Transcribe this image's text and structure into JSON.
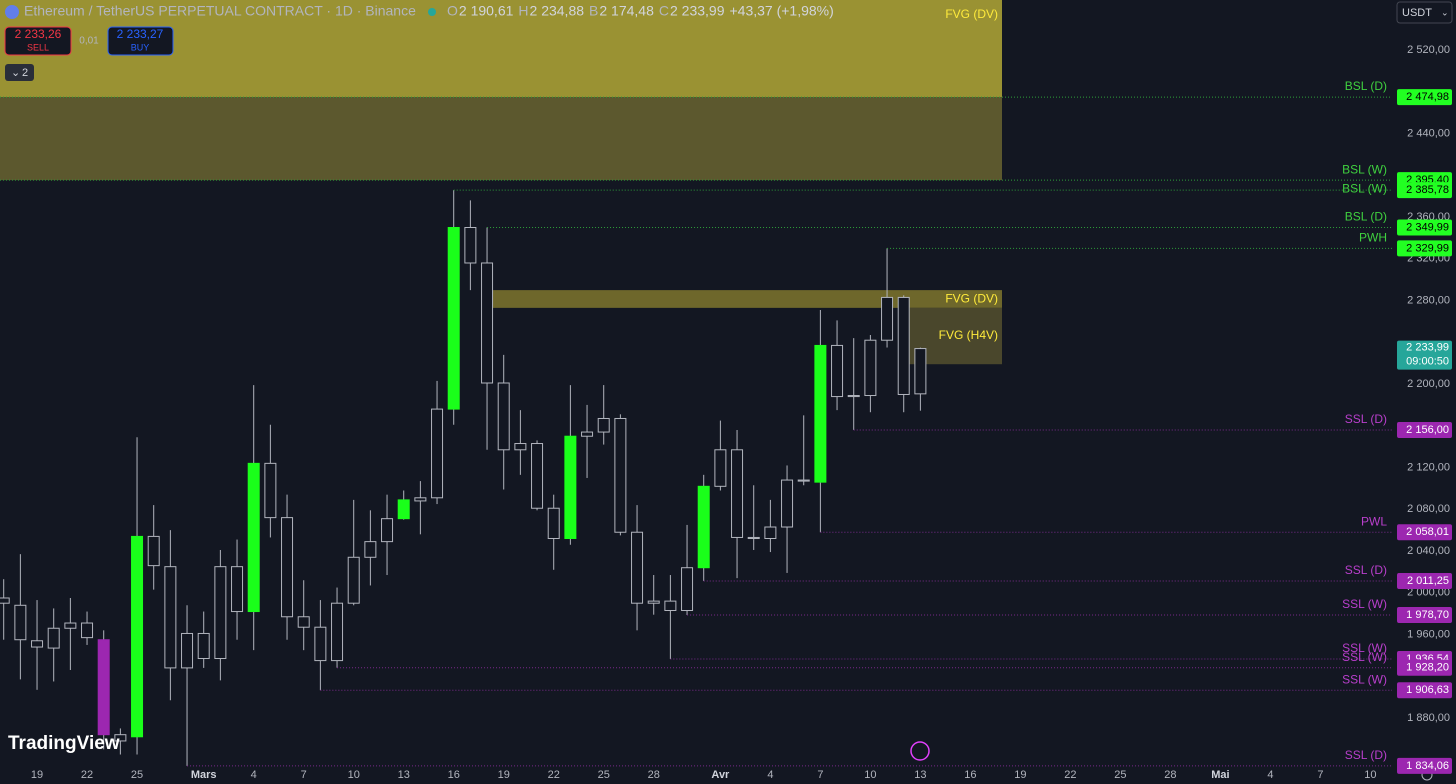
{
  "chart_data": {
    "type": "candlestick",
    "title": "Ethereum / TetherUS PERPETUAL CONTRACT · 1D · Binance",
    "header_fields": [
      {
        "key": "O",
        "value": "2 190,61"
      },
      {
        "key": "H",
        "value": "2 234,88"
      },
      {
        "key": "B",
        "value": "2 174,48"
      },
      {
        "key": "C",
        "value": "2 233,99"
      }
    ],
    "change": "+43,37 (+1,98%)",
    "sell": {
      "price": "2 233,26",
      "label": "SELL"
    },
    "spread": "0,01",
    "buy": {
      "price": "2 233,27",
      "label": "BUY"
    },
    "indicators": "2",
    "currency": "USDT",
    "brand": "TradingView",
    "last_price": {
      "value": 2233.99,
      "label": "2 233,99"
    },
    "countdown": "09:00:50",
    "categories": [
      null,
      null,
      "19",
      null,
      null,
      "22",
      null,
      null,
      "25",
      null,
      null,
      null,
      "Mars",
      null,
      null,
      "4",
      null,
      null,
      "7",
      null,
      null,
      "10",
      null,
      null,
      "13",
      null,
      null,
      "16",
      null,
      null,
      "19",
      null,
      null,
      "22",
      null,
      null,
      "25",
      null,
      null,
      "28",
      null,
      null,
      null,
      "Avr",
      null,
      null,
      "4",
      null,
      null,
      "7",
      null,
      null,
      "10",
      null,
      null,
      "13",
      null,
      null,
      "16",
      null,
      null,
      "19",
      null,
      null,
      "22",
      null,
      null,
      "25",
      null,
      null,
      "28",
      null,
      null,
      "Mai",
      null,
      null,
      "4",
      null,
      null,
      "7",
      null,
      null,
      "10"
    ],
    "open": [
      1995,
      1988,
      1954,
      1947,
      1966,
      1971,
      1955,
      1864,
      1862,
      2054,
      2025,
      1928,
      1961,
      1937,
      2025,
      1982,
      2124,
      2072,
      1977,
      1967,
      1935,
      1990,
      2034,
      2049,
      2071,
      2088,
      2091,
      2176,
      2350,
      2316,
      2201,
      2137,
      2143,
      2081,
      2052,
      2150,
      2154,
      2167,
      2058,
      1990,
      1992,
      1983,
      2024,
      2102,
      2137,
      2053,
      2052,
      2063,
      2108,
      2106,
      2237,
      2188,
      2189,
      2242,
      2283,
      2190.61,
      null,
      null,
      null,
      null,
      null,
      null,
      null,
      null,
      null,
      null,
      null,
      null,
      null,
      null,
      null,
      null,
      null,
      null,
      null,
      null,
      null,
      null,
      null,
      null,
      null,
      null,
      null
    ],
    "high": [
      2013,
      2037,
      1993,
      1985,
      1995,
      1982,
      1964,
      1870,
      2149,
      2084,
      2060,
      1988,
      1982,
      2041,
      2051,
      2199,
      2161,
      2094,
      2012,
      1993,
      2005,
      2089,
      2079,
      2094,
      2098,
      2107,
      2203,
      2385.78,
      2376,
      2349.99,
      2228,
      2175,
      2146,
      2094,
      2199,
      2180,
      2199,
      2171,
      2084,
      2017,
      2017,
      2065,
      2113,
      2165,
      2156,
      2103,
      2089,
      2122,
      2170,
      2271,
      2261,
      2244,
      2247,
      2329.99,
      2285,
      2234.88,
      null,
      null,
      null,
      null,
      null,
      null,
      null,
      null,
      null,
      null,
      null,
      null,
      null,
      null,
      null,
      null,
      null,
      null,
      null,
      null,
      null,
      null,
      null,
      null,
      null,
      null,
      null
    ],
    "low": [
      1955,
      1917,
      1907,
      1915,
      1926,
      1950,
      1850,
      1845,
      1845,
      2003,
      1897,
      1834.06,
      1928,
      1916,
      1955,
      1945,
      2053,
      1955,
      1945,
      1906.63,
      1928.2,
      1988,
      2007,
      2017,
      2070,
      2056,
      2085,
      2161,
      2290,
      2137,
      2099,
      2113,
      2079,
      2022,
      2046,
      2110,
      2142,
      2055,
      1964,
      1979,
      1936.54,
      1978.7,
      2011.25,
      2098,
      2014,
      2041,
      2039,
      2019,
      2103,
      2058.01,
      2175,
      2156,
      2173,
      2235,
      2173,
      2174.48,
      null,
      null,
      null,
      null,
      null,
      null,
      null,
      null,
      null,
      null,
      null,
      null,
      null,
      null,
      null,
      null,
      null,
      null,
      null,
      null,
      null,
      null,
      null,
      null,
      null,
      null,
      null
    ],
    "close": [
      1990,
      1955,
      1948,
      1966,
      1971,
      1957,
      1864,
      1858,
      2054,
      2026,
      1928,
      1961,
      1937,
      2025,
      1982,
      2124,
      2072,
      1977,
      1967,
      1935,
      1990,
      2034,
      2049,
      2071,
      2089,
      2091,
      2176,
      2350,
      2316,
      2201,
      2137,
      2143,
      2081,
      2052,
      2150,
      2154,
      2167,
      2058,
      1990,
      1992,
      1983,
      2024,
      2102,
      2137,
      2053,
      2052,
      2063,
      2108,
      2107,
      2237,
      2188,
      2189,
      2242,
      2283,
      2190,
      2233.99,
      null,
      null,
      null,
      null,
      null,
      null,
      null,
      null,
      null,
      null,
      null,
      null,
      null,
      null,
      null,
      null,
      null,
      null,
      null,
      null,
      null,
      null,
      null,
      null,
      null,
      null,
      null
    ],
    "colors": [
      "#131722",
      "#131722",
      "#131722",
      "#131722",
      "#131722",
      "#131722",
      "#9c27b0",
      "#131722",
      "#1aff1a",
      "#131722",
      "#131722",
      "#131722",
      "#131722",
      "#131722",
      "#131722",
      "#1aff1a",
      "#131722",
      "#131722",
      "#131722",
      "#131722",
      "#131722",
      "#131722",
      "#131722",
      "#131722",
      "#1aff1a",
      "#131722",
      "#131722",
      "#1aff1a",
      "#131722",
      "#131722",
      "#131722",
      "#131722",
      "#131722",
      "#131722",
      "#1aff1a",
      "#131722",
      "#131722",
      "#131722",
      "#131722",
      "#131722",
      "#131722",
      "#131722",
      "#1aff1a",
      "#131722",
      "#131722",
      "#131722",
      "#131722",
      "#131722",
      "#131722",
      "#1aff1a",
      "#131722",
      "#131722",
      "#131722",
      "#131722",
      "#131722",
      "#131722",
      null,
      null,
      null,
      null,
      null,
      null,
      null,
      null,
      null,
      null,
      null,
      null,
      null,
      null,
      null,
      null,
      null,
      null,
      null,
      null,
      null,
      null,
      null,
      null,
      null,
      null,
      null
    ],
    "ylim": [
      1834,
      2568
    ],
    "yticks": [
      {
        "value": 2520,
        "label": "2 520,00"
      },
      {
        "value": 2440,
        "label": "2 440,00"
      },
      {
        "value": 2360,
        "label": "2 360,00"
      },
      {
        "value": 2320,
        "label": "2 320,00"
      },
      {
        "value": 2280,
        "label": "2 280,00"
      },
      {
        "value": 2200,
        "label": "2 200,00"
      },
      {
        "value": 2120,
        "label": "2 120,00"
      },
      {
        "value": 2080,
        "label": "2 080,00"
      },
      {
        "value": 2040,
        "label": "2 040,00"
      },
      {
        "value": 2000,
        "label": "2 000,00"
      },
      {
        "value": 1960,
        "label": "1 960,00"
      },
      {
        "value": 1880,
        "label": "1 880,00"
      }
    ],
    "grid": false,
    "zones": [
      {
        "label": "FVG (DV)",
        "top": 2568,
        "bottom": 2474.98,
        "color": "#9a9233"
      },
      {
        "top": 2474.98,
        "bottom": 2395.4,
        "color": "#5c582e"
      },
      {
        "label": "FVG (DV)",
        "top": 2290,
        "bottom": 2273,
        "color": "#6e672b"
      },
      {
        "label": "FVG (H4V)",
        "top": 2273,
        "bottom": 2219,
        "color": "#4a472c"
      }
    ],
    "levels": [
      {
        "name": "BSL (D)",
        "value": 2474.98,
        "label": "2 474,98",
        "color": "#22ff22"
      },
      {
        "name": "BSL (W)",
        "value": 2395.4,
        "label": "2 395,40",
        "color": "#22ff22"
      },
      {
        "name": "BSL (W)",
        "value": 2385.78,
        "label": "2 385,78",
        "color": "#22ff22"
      },
      {
        "name": "BSL (D)",
        "value": 2349.99,
        "label": "2 349,99",
        "color": "#22ff22"
      },
      {
        "name": "PWH",
        "value": 2329.99,
        "label": "2 329,99",
        "color": "#22ff22"
      },
      {
        "name": "SSL (D)",
        "value": 2156.0,
        "label": "2 156,00",
        "color": "#9c27b0"
      },
      {
        "name": "PWL",
        "value": 2058.01,
        "label": "2 058,01",
        "color": "#9c27b0"
      },
      {
        "name": "SSL (D)",
        "value": 2011.25,
        "label": "2 011,25",
        "color": "#9c27b0"
      },
      {
        "name": "SSL (W)",
        "value": 1978.7,
        "label": "1 978,70",
        "color": "#9c27b0"
      },
      {
        "name": "SSL (W)",
        "value": 1936.54,
        "label": "1 936,54",
        "color": "#9c27b0"
      },
      {
        "name": "SSL (W)",
        "value": 1928.2,
        "label": "1 928,20",
        "color": "#9c27b0"
      },
      {
        "name": "SSL (W)",
        "value": 1906.63,
        "label": "1 906,63",
        "color": "#9c27b0"
      },
      {
        "name": "SSL (D)",
        "value": 1834.06,
        "label": "1 834,06",
        "color": "#9c27b0"
      }
    ]
  }
}
